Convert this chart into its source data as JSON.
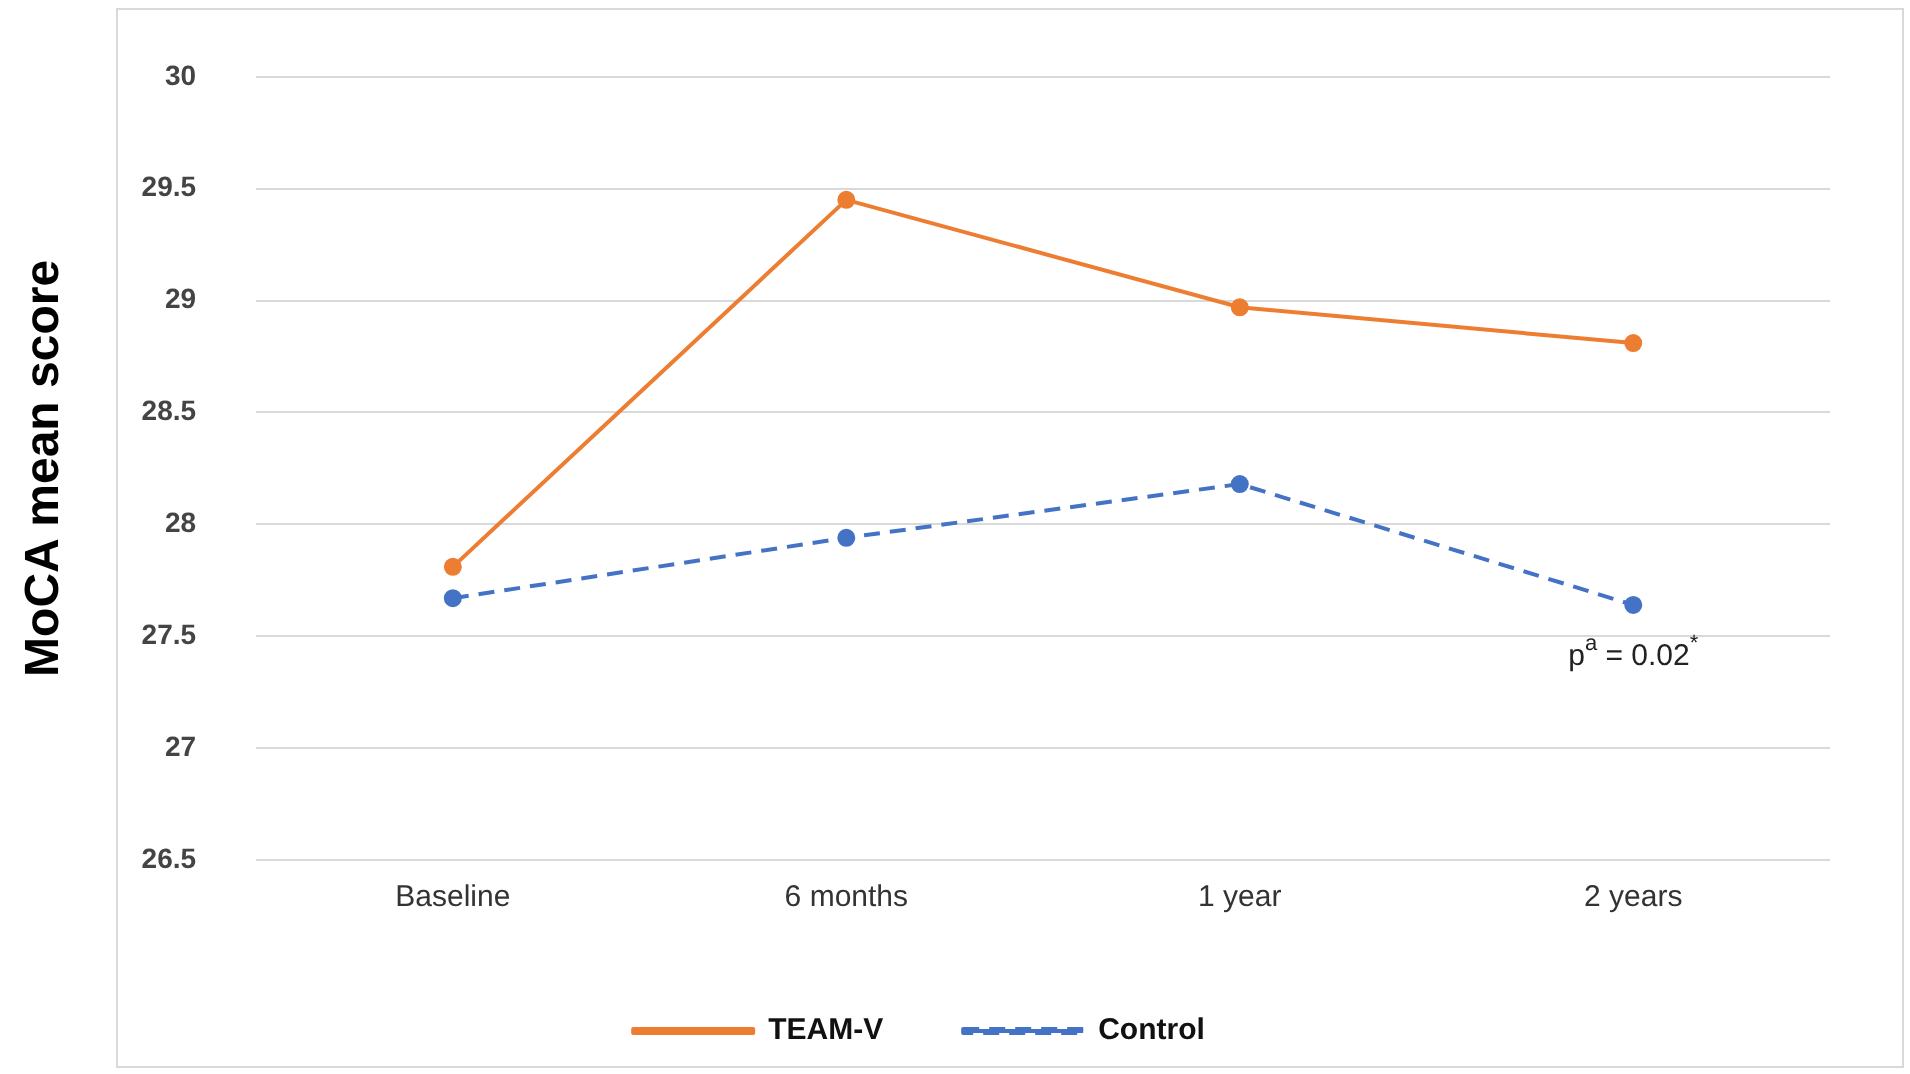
{
  "chart_data": {
    "type": "line",
    "ylabel": "MoCA mean score",
    "categories": [
      "Baseline",
      "6 months",
      "1 year",
      "2 years"
    ],
    "series": [
      {
        "name": "TEAM-V",
        "color": "#ed7d31",
        "values": [
          27.81,
          29.45,
          28.97,
          28.81
        ],
        "line_style": "solid"
      },
      {
        "name": "Control",
        "color": "#4472c4",
        "values": [
          27.67,
          27.94,
          28.18,
          27.64
        ],
        "line_style": "dashed"
      }
    ],
    "ylim": [
      26.5,
      30
    ],
    "yticks": [
      26.5,
      27,
      27.5,
      28,
      28.5,
      29,
      29.5,
      30
    ],
    "grid": "y",
    "legend": "bottom",
    "marker": "circle",
    "annotations": [
      "p$^{a}$ = 0.02$^{*}$"
    ]
  }
}
